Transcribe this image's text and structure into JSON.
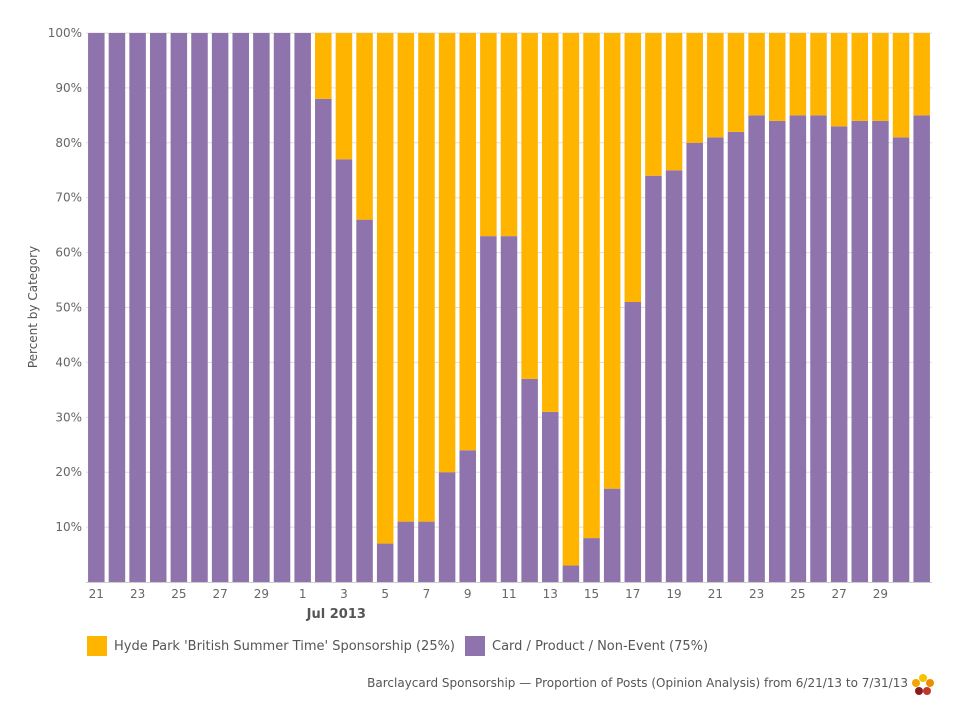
{
  "chart_data": {
    "type": "bar",
    "stacked": true,
    "normalized": true,
    "ylabel": "Percent by Category",
    "ylim": [
      0,
      100
    ],
    "y_ticks": [
      "10%",
      "20%",
      "30%",
      "40%",
      "50%",
      "60%",
      "70%",
      "80%",
      "90%",
      "100%"
    ],
    "x_tick_labels": [
      "21",
      "23",
      "25",
      "27",
      "29",
      "1",
      "3",
      "5",
      "7",
      "9",
      "11",
      "13",
      "15",
      "17",
      "19",
      "21",
      "23",
      "25",
      "27",
      "29"
    ],
    "x_tick_indices": [
      0,
      2,
      4,
      6,
      8,
      10,
      12,
      14,
      16,
      18,
      20,
      22,
      24,
      26,
      28,
      30,
      32,
      34,
      36,
      38
    ],
    "month_label": "Jul 2013",
    "month_label_index": 11,
    "categories": [
      "Jun 21",
      "Jun 22",
      "Jun 23",
      "Jun 24",
      "Jun 25",
      "Jun 26",
      "Jun 27",
      "Jun 28",
      "Jun 29",
      "Jun 30",
      "Jul 1",
      "Jul 2",
      "Jul 3",
      "Jul 4",
      "Jul 5",
      "Jul 6",
      "Jul 7",
      "Jul 8",
      "Jul 9",
      "Jul 10",
      "Jul 11",
      "Jul 12",
      "Jul 13",
      "Jul 14",
      "Jul 15",
      "Jul 16",
      "Jul 17",
      "Jul 18",
      "Jul 19",
      "Jul 20",
      "Jul 21",
      "Jul 22",
      "Jul 23",
      "Jul 24",
      "Jul 25",
      "Jul 26",
      "Jul 27",
      "Jul 28",
      "Jul 29",
      "Jul 30",
      "Jul 31"
    ],
    "series": [
      {
        "name": "Card / Product / Non-Event",
        "legend_label": "Card / Product / Non-Event (75%)",
        "color": "#8e73ad",
        "values": [
          100,
          100,
          100,
          100,
          100,
          100,
          100,
          100,
          100,
          100,
          100,
          88,
          77,
          66,
          7,
          11,
          11,
          20,
          24,
          63,
          63,
          37,
          31,
          3,
          8,
          17,
          51,
          74,
          75,
          80,
          81,
          82,
          85,
          84,
          85,
          85,
          83,
          84,
          84,
          81,
          85
        ]
      },
      {
        "name": "Hyde Park 'British Summer Time' Sponsorship",
        "legend_label": "Hyde Park 'British Summer Time' Sponsorship (25%)",
        "color": "#ffb400",
        "values": [
          0,
          0,
          0,
          0,
          0,
          0,
          0,
          0,
          0,
          0,
          0,
          12,
          23,
          34,
          93,
          89,
          89,
          80,
          76,
          37,
          37,
          63,
          69,
          97,
          92,
          83,
          49,
          26,
          25,
          20,
          19,
          18,
          15,
          16,
          15,
          15,
          17,
          16,
          16,
          19,
          15
        ]
      }
    ],
    "grid": true,
    "legend_position": "bottom-left"
  },
  "caption": "Barclaycard Sponsorship — Proportion of Posts (Opinion Analysis) from 6/21/13 to 7/31/13",
  "logo_icon": "flower-logo-icon"
}
